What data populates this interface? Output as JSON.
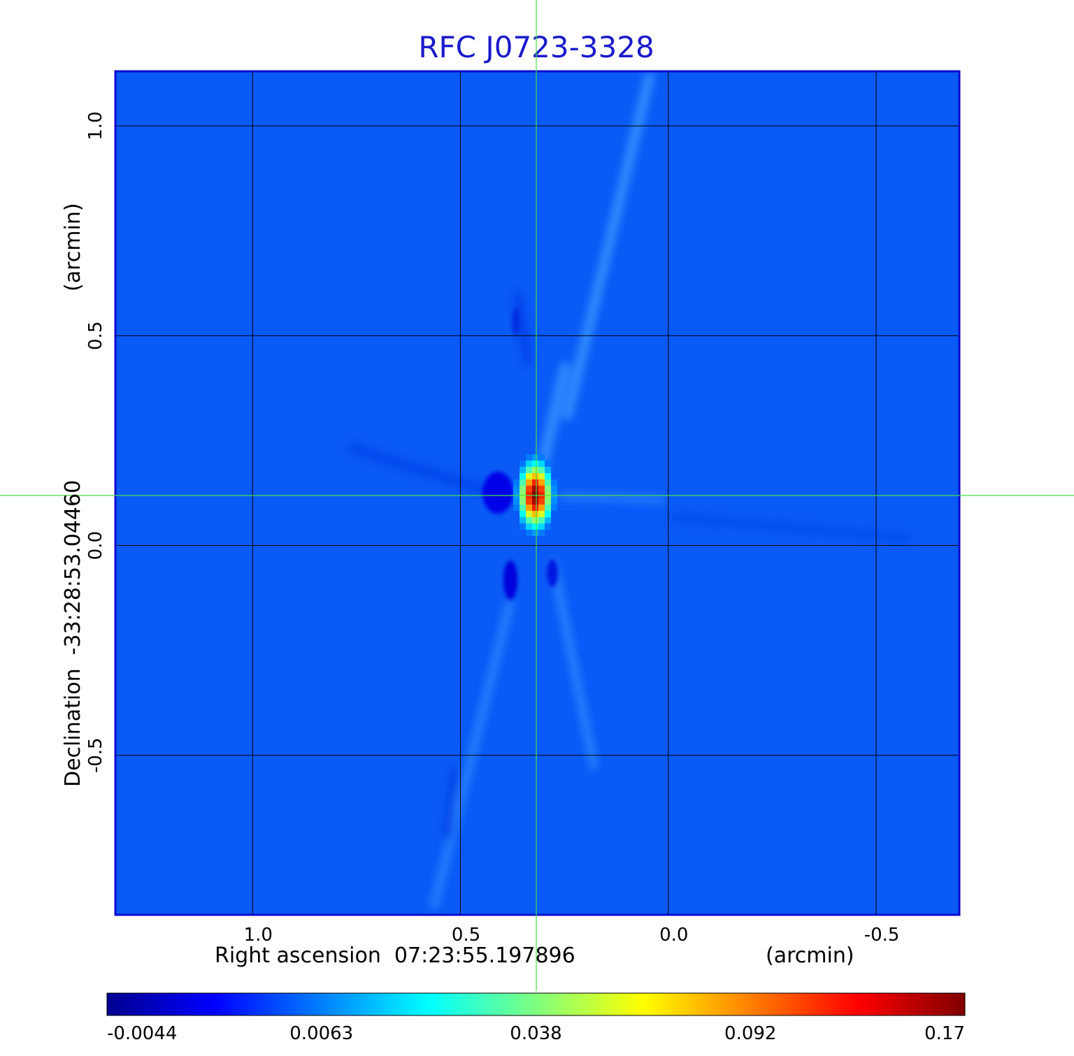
{
  "chart_data": {
    "type": "heatmap",
    "title": "RFC J0723-3328",
    "xlabel": "Right ascension  07:23:55.197896",
    "xunit": "(arcmin)",
    "ylabel": "Declination  -33:28:53.04460",
    "yunit": "(arcmin)",
    "xlim": [
      1.33,
      -0.7
    ],
    "ylim": [
      -0.88,
      1.13
    ],
    "xticks": [
      {
        "value": 1.0,
        "label": "1.0"
      },
      {
        "value": 0.5,
        "label": "0.5"
      },
      {
        "value": 0.0,
        "label": "0.0"
      },
      {
        "value": -0.5,
        "label": "-0.5"
      }
    ],
    "yticks": [
      {
        "value": 1.0,
        "label": "1.0"
      },
      {
        "value": 0.5,
        "label": "0.5"
      },
      {
        "value": 0.0,
        "label": "0.0"
      },
      {
        "value": -0.5,
        "label": "-0.5"
      }
    ],
    "grid": true,
    "crosshair": {
      "x": 0.32,
      "y": 0.115
    },
    "peak": {
      "x": 0.32,
      "y": 0.12,
      "value": 0.17
    },
    "colorbar": {
      "colormap": "jet",
      "min": -0.0044,
      "max": 0.17,
      "ticks": [
        {
          "value": -0.0044,
          "label": "-0.0044"
        },
        {
          "value": 0.0063,
          "label": "0.0063"
        },
        {
          "value": 0.038,
          "label": "0.038"
        },
        {
          "value": 0.092,
          "label": "0.092"
        },
        {
          "value": 0.17,
          "label": "0.17"
        }
      ]
    }
  },
  "colors": {
    "title": "#1a1acc",
    "frame": "#0a0ad0",
    "background_field": "#0a5af6",
    "crosshair": "#44e044",
    "grid": "#000000"
  }
}
